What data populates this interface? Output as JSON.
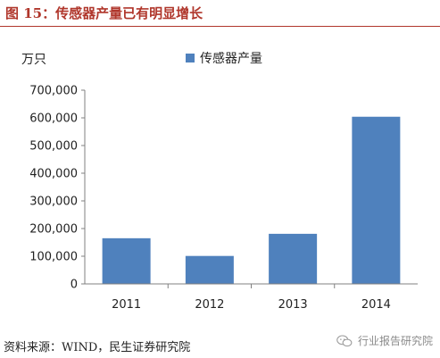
{
  "header": {
    "title": "图 15：传感器产量已有明显增长"
  },
  "footer": {
    "source": "资料来源：WIND，民生证券研究院",
    "watermark": "行业报告研究院"
  },
  "icons": {
    "watermark_icon": "wechat-icon"
  },
  "colors": {
    "title": "#b0372c",
    "bar": "#4f81bd",
    "axis": "#808080"
  },
  "chart_data": {
    "type": "bar",
    "categories": [
      "2011",
      "2012",
      "2013",
      "2014"
    ],
    "series": [
      {
        "name": "传感器产量",
        "values": [
          165000,
          101000,
          181000,
          604000
        ]
      }
    ],
    "unit": "万只",
    "ylim": [
      0,
      700000
    ],
    "yticks": [
      "0",
      "100,000",
      "200,000",
      "300,000",
      "400,000",
      "500,000",
      "600,000",
      "700,000"
    ],
    "grid": false,
    "legend_position": "top"
  }
}
